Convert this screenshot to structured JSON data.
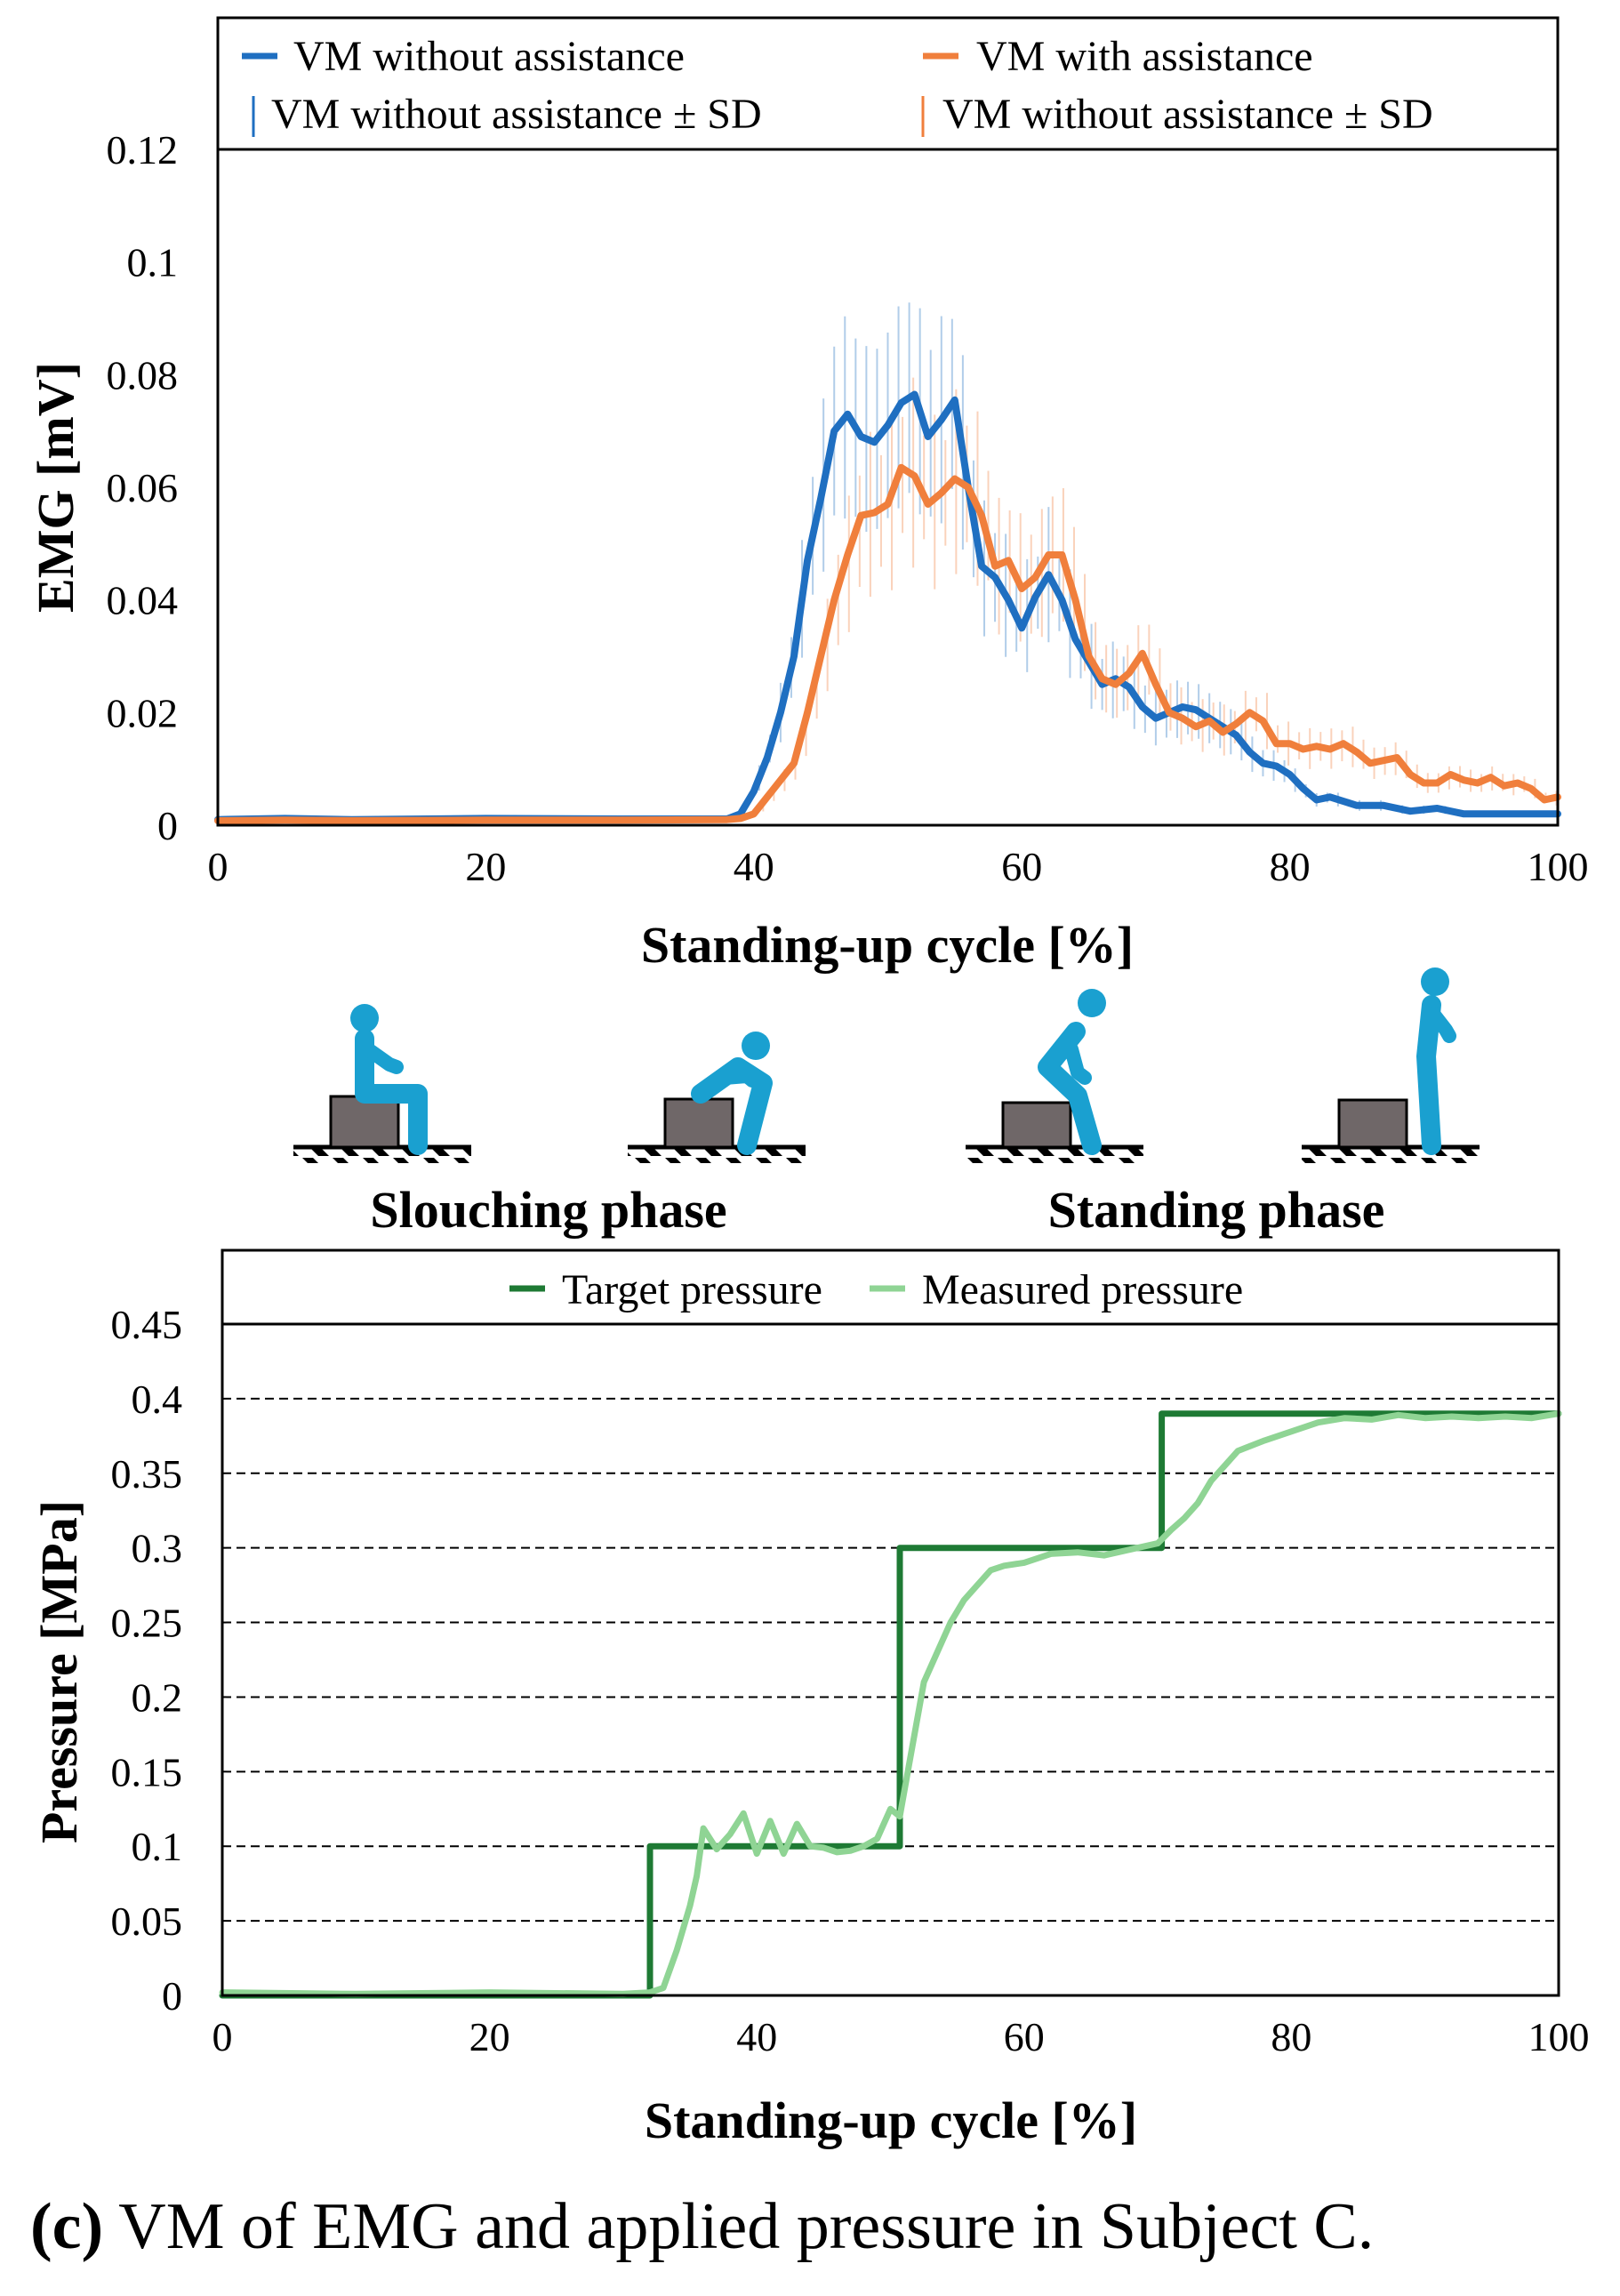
{
  "chart_data": [
    {
      "type": "line",
      "title": "",
      "xlabel": "Standing-up cycle [%]",
      "ylabel": "EMG [mV]",
      "xlim": [
        0,
        100
      ],
      "ylim": [
        0,
        0.12
      ],
      "xticks": [
        "0",
        "20",
        "40",
        "60",
        "80",
        "100"
      ],
      "yticks": [
        "0",
        "0.02",
        "0.04",
        "0.06",
        "0.08",
        "0.1",
        "0.12"
      ],
      "grid": false,
      "legend_position": "top",
      "legend": [
        "VM without assistance",
        "VM with assistance",
        "VM without assistance ± SD",
        "VM without assistance ± SD"
      ],
      "series": [
        {
          "name": "VM without assistance",
          "color": "#1f6fc1",
          "x": [
            0,
            5,
            10,
            20,
            30,
            38,
            39,
            40,
            41,
            42,
            43,
            44,
            45,
            46,
            47,
            48,
            49,
            50,
            51,
            52,
            53,
            54,
            55,
            56,
            57,
            58,
            59,
            60,
            61,
            62,
            63,
            64,
            65,
            66,
            67,
            68,
            69,
            70,
            71,
            72,
            73,
            74,
            75,
            76,
            77,
            78,
            79,
            80,
            81,
            82,
            83,
            85,
            87,
            89,
            91,
            93,
            95,
            97,
            100
          ],
          "values": [
            0.001,
            0.0012,
            0.001,
            0.0012,
            0.0011,
            0.0011,
            0.002,
            0.006,
            0.012,
            0.02,
            0.03,
            0.047,
            0.058,
            0.07,
            0.073,
            0.069,
            0.068,
            0.071,
            0.075,
            0.0765,
            0.069,
            0.072,
            0.0755,
            0.06,
            0.046,
            0.044,
            0.04,
            0.035,
            0.0405,
            0.0445,
            0.04,
            0.033,
            0.029,
            0.025,
            0.026,
            0.0245,
            0.021,
            0.019,
            0.02,
            0.021,
            0.0205,
            0.019,
            0.0175,
            0.016,
            0.013,
            0.011,
            0.0105,
            0.009,
            0.0065,
            0.0045,
            0.005,
            0.0035,
            0.0035,
            0.0025,
            0.003,
            0.002,
            0.002,
            0.002,
            0.002
          ]
        },
        {
          "name": "VM with assistance",
          "color": "#f07f3c",
          "x": [
            0,
            5,
            10,
            20,
            30,
            38,
            39,
            40,
            41,
            42,
            43,
            44,
            45,
            46,
            47,
            48,
            49,
            50,
            51,
            52,
            53,
            54,
            55,
            56,
            57,
            58,
            59,
            60,
            61,
            62,
            63,
            64,
            65,
            66,
            67,
            68,
            69,
            70,
            71,
            72,
            73,
            74,
            75,
            76,
            77,
            78,
            79,
            80,
            81,
            82,
            83,
            84,
            85,
            86,
            87,
            88,
            89,
            90,
            91,
            92,
            93,
            94,
            95,
            96,
            97,
            98,
            99,
            100
          ],
          "values": [
            0.0008,
            0.0009,
            0.0008,
            0.0009,
            0.0009,
            0.001,
            0.0012,
            0.002,
            0.005,
            0.008,
            0.011,
            0.02,
            0.03,
            0.04,
            0.048,
            0.055,
            0.0555,
            0.057,
            0.0635,
            0.062,
            0.057,
            0.059,
            0.0615,
            0.06,
            0.055,
            0.046,
            0.047,
            0.042,
            0.044,
            0.048,
            0.048,
            0.04,
            0.03,
            0.026,
            0.025,
            0.027,
            0.0305,
            0.025,
            0.02,
            0.019,
            0.0175,
            0.0185,
            0.0165,
            0.018,
            0.02,
            0.0185,
            0.0145,
            0.0145,
            0.0135,
            0.014,
            0.0135,
            0.0145,
            0.013,
            0.011,
            0.0115,
            0.012,
            0.009,
            0.0075,
            0.0075,
            0.009,
            0.008,
            0.0075,
            0.0085,
            0.007,
            0.0075,
            0.0065,
            0.0045,
            0.005
          ]
        }
      ]
    },
    {
      "type": "line",
      "title": "",
      "xlabel": "Standing-up cycle [%]",
      "ylabel": "Pressure [MPa]",
      "xlim": [
        0,
        100
      ],
      "ylim": [
        0,
        0.45
      ],
      "xticks": [
        "0",
        "20",
        "40",
        "60",
        "80",
        "100"
      ],
      "yticks": [
        "0",
        "0.05",
        "0.1",
        "0.15",
        "0.2",
        "0.25",
        "0.3",
        "0.35",
        "0.4",
        "0.45"
      ],
      "grid": true,
      "legend_position": "top",
      "legend": [
        "Target pressure",
        "Measured pressure"
      ],
      "series": [
        {
          "name": "Target pressure",
          "color": "#1e7a34",
          "x": [
            0,
            32,
            32,
            50.7,
            50.7,
            70.3,
            70.3,
            100
          ],
          "values": [
            0,
            0,
            0.1,
            0.1,
            0.3,
            0.3,
            0.39,
            0.39
          ]
        },
        {
          "name": "Measured pressure",
          "color": "#8fd494",
          "x": [
            0,
            10,
            20,
            30,
            32,
            33,
            34,
            35,
            35.5,
            36,
            37,
            38,
            39,
            40,
            41,
            42,
            43,
            44,
            45,
            46,
            47,
            48,
            49,
            50,
            50.7,
            51.5,
            52.5,
            53.5,
            54.5,
            55.5,
            56.5,
            57.5,
            58.5,
            60,
            62,
            64,
            66,
            68,
            70,
            71,
            72,
            73,
            74,
            75,
            76,
            78,
            80,
            82,
            84,
            86,
            88,
            90,
            92,
            94,
            96,
            98,
            100
          ],
          "values": [
            0.002,
            0.001,
            0.002,
            0.001,
            0.002,
            0.005,
            0.03,
            0.06,
            0.08,
            0.112,
            0.098,
            0.108,
            0.122,
            0.095,
            0.117,
            0.095,
            0.115,
            0.1,
            0.099,
            0.096,
            0.097,
            0.1,
            0.105,
            0.125,
            0.12,
            0.16,
            0.21,
            0.23,
            0.25,
            0.265,
            0.275,
            0.285,
            0.288,
            0.29,
            0.296,
            0.297,
            0.295,
            0.299,
            0.303,
            0.312,
            0.32,
            0.33,
            0.345,
            0.355,
            0.365,
            0.372,
            0.378,
            0.384,
            0.387,
            0.386,
            0.389,
            0.387,
            0.388,
            0.387,
            0.388,
            0.387,
            0.39
          ]
        }
      ]
    }
  ],
  "phases": {
    "slouching_label": "Slouching phase",
    "standing_label": "Standing phase",
    "figure_color": "#1aa0d0",
    "chair_color": "#6f6768"
  },
  "caption": {
    "tag": "(c)",
    "text": " VM of EMG and applied pressure in Subject C."
  }
}
